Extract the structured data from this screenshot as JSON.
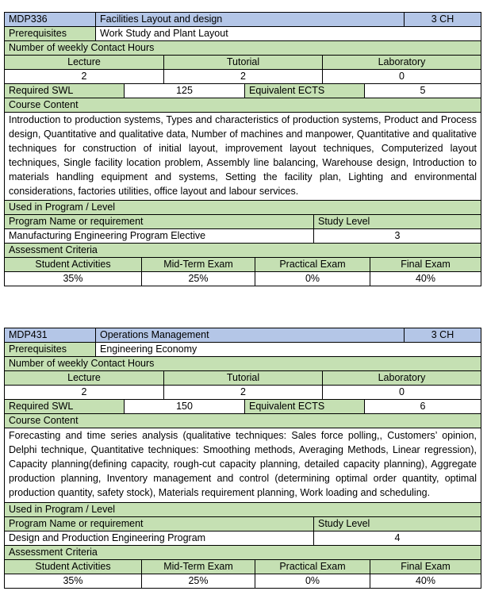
{
  "courses": [
    {
      "code": "MDP336",
      "title": "Facilities Layout and design",
      "credit": "3 CH",
      "prereq_label": "Prerequisites",
      "prereq": "Work Study and Plant Layout",
      "hours_label": "Number of weekly Contact Hours",
      "hours_headers": [
        "Lecture",
        "Tutorial",
        "Laboratory"
      ],
      "hours_values": [
        "2",
        "2",
        "0"
      ],
      "swl_label": "Required SWL",
      "swl": "125",
      "ects_label": "Equivalent ECTS",
      "ects": "5",
      "content_label": "Course Content",
      "content": "Introduction to production systems, Types and characteristics of production systems, Product and Process design, Quantitative and qualitative data, Number of machines and manpower, Quantitative and qualitative techniques for construction of initial layout, improvement layout techniques, Computerized layout techniques, Single facility location problem, Assembly line balancing, Warehouse design, Introduction to materials handling equipment and systems, Setting the facility plan, Lighting and environmental considerations, factories utilities, office layout and labour services.",
      "used_label": "Used in Program / Level",
      "program_label": "Program Name or requirement",
      "level_label": "Study Level",
      "program": "Manufacturing Engineering Program Elective",
      "level": "3",
      "assess_label": "Assessment Criteria",
      "assess_headers": [
        "Student Activities",
        "Mid-Term Exam",
        "Practical Exam",
        "Final Exam"
      ],
      "assess_values": [
        "35%",
        "25%",
        "0%",
        "40%"
      ]
    },
    {
      "code": "MDP431",
      "title": "Operations Management",
      "credit": "3 CH",
      "prereq_label": "Prerequisites",
      "prereq": "Engineering Economy",
      "hours_label": "Number of weekly Contact Hours",
      "hours_headers": [
        "Lecture",
        "Tutorial",
        "Laboratory"
      ],
      "hours_values": [
        "2",
        "2",
        "0"
      ],
      "swl_label": "Required SWL",
      "swl": "150",
      "ects_label": "Equivalent ECTS",
      "ects": "6",
      "content_label": "Course Content",
      "content": "Forecasting and time series analysis (qualitative techniques: Sales force polling,, Customers’ opinion, Delphi technique, Quantitative techniques: Smoothing methods, Averaging Methods, Linear regression), Capacity planning(defining capacity, rough-cut capacity planning, detailed capacity planning), Aggregate production planning, Inventory management and control (determining optimal order quantity, optimal production quantity, safety stock), Materials requirement planning, Work loading and scheduling.",
      "used_label": "Used in Program / Level",
      "program_label": "Program Name or requirement",
      "level_label": "Study Level",
      "program": "Design and Production Engineering Program",
      "level": "4",
      "assess_label": "Assessment Criteria",
      "assess_headers": [
        "Student Activities",
        "Mid-Term Exam",
        "Practical Exam",
        "Final Exam"
      ],
      "assess_values": [
        "35%",
        "25%",
        "0%",
        "40%"
      ]
    }
  ]
}
